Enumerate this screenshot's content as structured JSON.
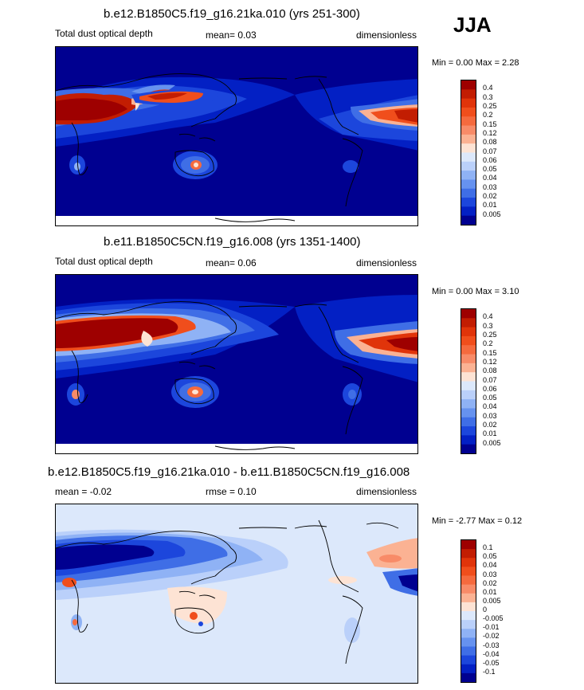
{
  "season": "JJA",
  "panels": [
    {
      "title": "b.e12.B1850C5.f19_g16.21ka.010 (yrs 251-300)",
      "left_label": "Total dust optical depth",
      "mid_label": "mean=  0.03",
      "right_label": "dimensionless",
      "minmax": "Min =   0.00 Max =   2.28",
      "levels": [
        "0.4",
        "0.3",
        "0.25",
        "0.2",
        "0.15",
        "0.12",
        "0.08",
        "0.07",
        "0.06",
        "0.05",
        "0.04",
        "0.03",
        "0.02",
        "0.01",
        "0.005"
      ],
      "colors": [
        "#9e0000",
        "#c21d02",
        "#e0340a",
        "#f04e1c",
        "#f56a3e",
        "#f88b68",
        "#fbb293",
        "#fde3d4",
        "#dce8fb",
        "#bad0fa",
        "#8fb2f5",
        "#6692ef",
        "#3f6ee6",
        "#1c46dc",
        "#0320c4",
        "#000090"
      ]
    },
    {
      "title": "b.e11.B1850C5CN.f19_g16.008 (yrs 1351-1400)",
      "left_label": "Total dust optical depth",
      "mid_label": "mean=  0.06",
      "right_label": "dimensionless",
      "minmax": "Min =   0.00 Max =   3.10",
      "levels": [
        "0.4",
        "0.3",
        "0.25",
        "0.2",
        "0.15",
        "0.12",
        "0.08",
        "0.07",
        "0.06",
        "0.05",
        "0.04",
        "0.03",
        "0.02",
        "0.01",
        "0.005"
      ],
      "colors": [
        "#9e0000",
        "#c21d02",
        "#e0340a",
        "#f04e1c",
        "#f56a3e",
        "#f88b68",
        "#fbb293",
        "#fde3d4",
        "#dce8fb",
        "#bad0fa",
        "#8fb2f5",
        "#6692ef",
        "#3f6ee6",
        "#1c46dc",
        "#0320c4",
        "#000090"
      ]
    },
    {
      "title": "b.e12.B1850C5.f19_g16.21ka.010 - b.e11.B1850C5CN.f19_g16.008",
      "left_label": "mean =  -0.02",
      "mid_label": "rmse =   0.10",
      "right_label": "dimensionless",
      "minmax": "Min =  -2.77 Max =   0.12",
      "levels": [
        "0.1",
        "0.05",
        "0.04",
        "0.03",
        "0.02",
        "0.01",
        "0.005",
        "0",
        "-0.005",
        "-0.01",
        "-0.02",
        "-0.03",
        "-0.04",
        "-0.05",
        "-0.1"
      ],
      "colors": [
        "#9e0000",
        "#c21d02",
        "#e0340a",
        "#f04e1c",
        "#f56a3e",
        "#f88b68",
        "#fbb293",
        "#fde3d4",
        "#dce8fb",
        "#bad0fa",
        "#8fb2f5",
        "#6692ef",
        "#3f6ee6",
        "#1c46dc",
        "#0320c4",
        "#000090"
      ]
    }
  ],
  "chart_data": [
    {
      "type": "heatmap",
      "title": "b.e12.B1850C5.f19_g16.21ka.010 (yrs 251-300)",
      "variable": "Total dust optical depth",
      "units": "dimensionless",
      "season": "JJA",
      "mean": 0.03,
      "min": 0.0,
      "max": 2.28,
      "contour_levels": [
        0.005,
        0.01,
        0.02,
        0.03,
        0.04,
        0.05,
        0.06,
        0.07,
        0.08,
        0.12,
        0.15,
        0.2,
        0.25,
        0.3,
        0.4
      ]
    },
    {
      "type": "heatmap",
      "title": "b.e11.B1850C5CN.f19_g16.008 (yrs 1351-1400)",
      "variable": "Total dust optical depth",
      "units": "dimensionless",
      "season": "JJA",
      "mean": 0.06,
      "min": 0.0,
      "max": 3.1,
      "contour_levels": [
        0.005,
        0.01,
        0.02,
        0.03,
        0.04,
        0.05,
        0.06,
        0.07,
        0.08,
        0.12,
        0.15,
        0.2,
        0.25,
        0.3,
        0.4
      ]
    },
    {
      "type": "heatmap",
      "title": "b.e12.B1850C5.f19_g16.21ka.010 - b.e11.B1850C5CN.f19_g16.008",
      "variable": "difference",
      "units": "dimensionless",
      "season": "JJA",
      "mean": -0.02,
      "rmse": 0.1,
      "min": -2.77,
      "max": 0.12,
      "contour_levels": [
        -0.1,
        -0.05,
        -0.04,
        -0.03,
        -0.02,
        -0.01,
        -0.005,
        0,
        0.005,
        0.01,
        0.02,
        0.03,
        0.04,
        0.05,
        0.1
      ]
    }
  ]
}
